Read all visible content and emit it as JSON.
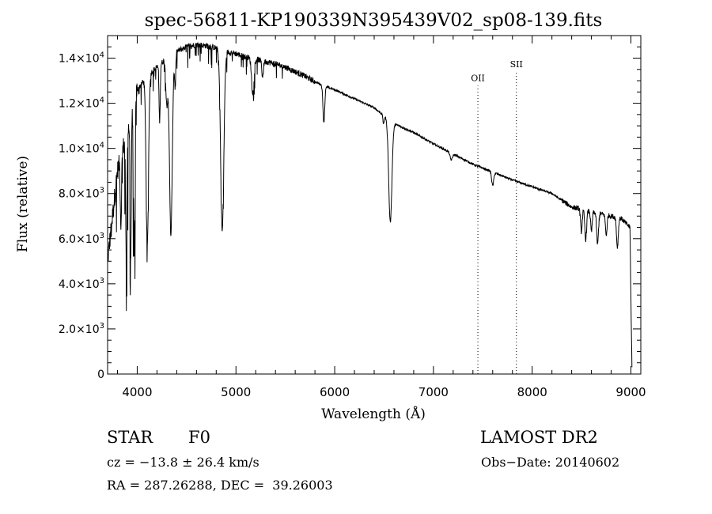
{
  "chart_data": {
    "type": "line",
    "title": "spec-56811-KP190339N395439V02_sp08-139.fits",
    "xlabel": "Wavelength (Å)",
    "ylabel": "Flux (relative)",
    "xlim": [
      3700,
      9100
    ],
    "ylim": [
      0,
      15000
    ],
    "x_ticks": [
      4000,
      5000,
      6000,
      7000,
      8000,
      9000
    ],
    "x_tick_labels": [
      "4000",
      "5000",
      "6000",
      "7000",
      "8000",
      "9000"
    ],
    "y_ticks": [
      0,
      2000,
      4000,
      6000,
      8000,
      10000,
      12000,
      14000
    ],
    "y_tick_labels": [
      {
        "mant": "0",
        "exp": ""
      },
      {
        "mant": "2.0×10",
        "exp": "3"
      },
      {
        "mant": "4.0×10",
        "exp": "3"
      },
      {
        "mant": "6.0×10",
        "exp": "3"
      },
      {
        "mant": "8.0×10",
        "exp": "3"
      },
      {
        "mant": "1.0×10",
        "exp": "4"
      },
      {
        "mant": "1.2×10",
        "exp": "4"
      },
      {
        "mant": "1.4×10",
        "exp": "4"
      }
    ],
    "grid": false,
    "line_color": "#000000",
    "continuum": {
      "x": [
        3700,
        3800,
        3900,
        4000,
        4100,
        4200,
        4300,
        4400,
        4500,
        4600,
        4700,
        4800,
        4900,
        5000,
        5100,
        5200,
        5300,
        5400,
        5500,
        5600,
        5700,
        5800,
        5900,
        6000,
        6200,
        6400,
        6600,
        6800,
        7000,
        7200,
        7400,
        7600,
        7800,
        8000,
        8200,
        8300,
        8400,
        8600,
        8800,
        8900,
        8990,
        9010
      ],
      "y": [
        5000,
        9000,
        10800,
        12600,
        13200,
        13600,
        14000,
        14300,
        14500,
        14600,
        14550,
        14450,
        14300,
        14200,
        14050,
        13950,
        13850,
        13750,
        13600,
        13400,
        13200,
        12950,
        12750,
        12600,
        12200,
        11800,
        11100,
        10700,
        10200,
        9750,
        9300,
        8950,
        8600,
        8300,
        8000,
        7700,
        7400,
        7200,
        7000,
        6900,
        6500,
        300
      ]
    },
    "absorption_lines": [
      {
        "x": 3835,
        "depth": 3000,
        "width": 6
      },
      {
        "x": 3889,
        "depth": 5000,
        "width": 7
      },
      {
        "x": 3934,
        "depth": 6500,
        "width": 6
      },
      {
        "x": 3970,
        "depth": 7000,
        "width": 7
      },
      {
        "x": 4102,
        "depth": 7500,
        "width": 12
      },
      {
        "x": 4227,
        "depth": 2500,
        "width": 6
      },
      {
        "x": 4300,
        "depth": 2000,
        "width": 10
      },
      {
        "x": 4341,
        "depth": 8000,
        "width": 14
      },
      {
        "x": 4384,
        "depth": 1500,
        "width": 6
      },
      {
        "x": 4861,
        "depth": 8000,
        "width": 16
      },
      {
        "x": 5170,
        "depth": 1500,
        "width": 12
      },
      {
        "x": 5270,
        "depth": 700,
        "width": 8
      },
      {
        "x": 5890,
        "depth": 1600,
        "width": 9
      },
      {
        "x": 6495,
        "depth": 400,
        "width": 6
      },
      {
        "x": 6563,
        "depth": 4500,
        "width": 16
      },
      {
        "x": 7180,
        "depth": 300,
        "width": 12
      },
      {
        "x": 7600,
        "depth": 600,
        "width": 10
      },
      {
        "x": 8498,
        "depth": 1000,
        "width": 8
      },
      {
        "x": 8542,
        "depth": 1300,
        "width": 9
      },
      {
        "x": 8600,
        "depth": 900,
        "width": 8
      },
      {
        "x": 8662,
        "depth": 1400,
        "width": 9
      },
      {
        "x": 8750,
        "depth": 900,
        "width": 8
      },
      {
        "x": 8863,
        "depth": 1300,
        "width": 9
      }
    ],
    "annotations": [
      {
        "label": "OII",
        "x": 7450,
        "y": 13200
      },
      {
        "label": "SII",
        "x": 7840,
        "y": 13800
      }
    ]
  },
  "info": {
    "object_class": "STAR",
    "subclass": "F0",
    "redshift": "cz = −13.8 ± 26.4 km/s",
    "coords": "RA = 287.26288, DEC =  39.26003",
    "survey": "LAMOST DR2",
    "obs_date": "Obs−Date: 20140602"
  }
}
